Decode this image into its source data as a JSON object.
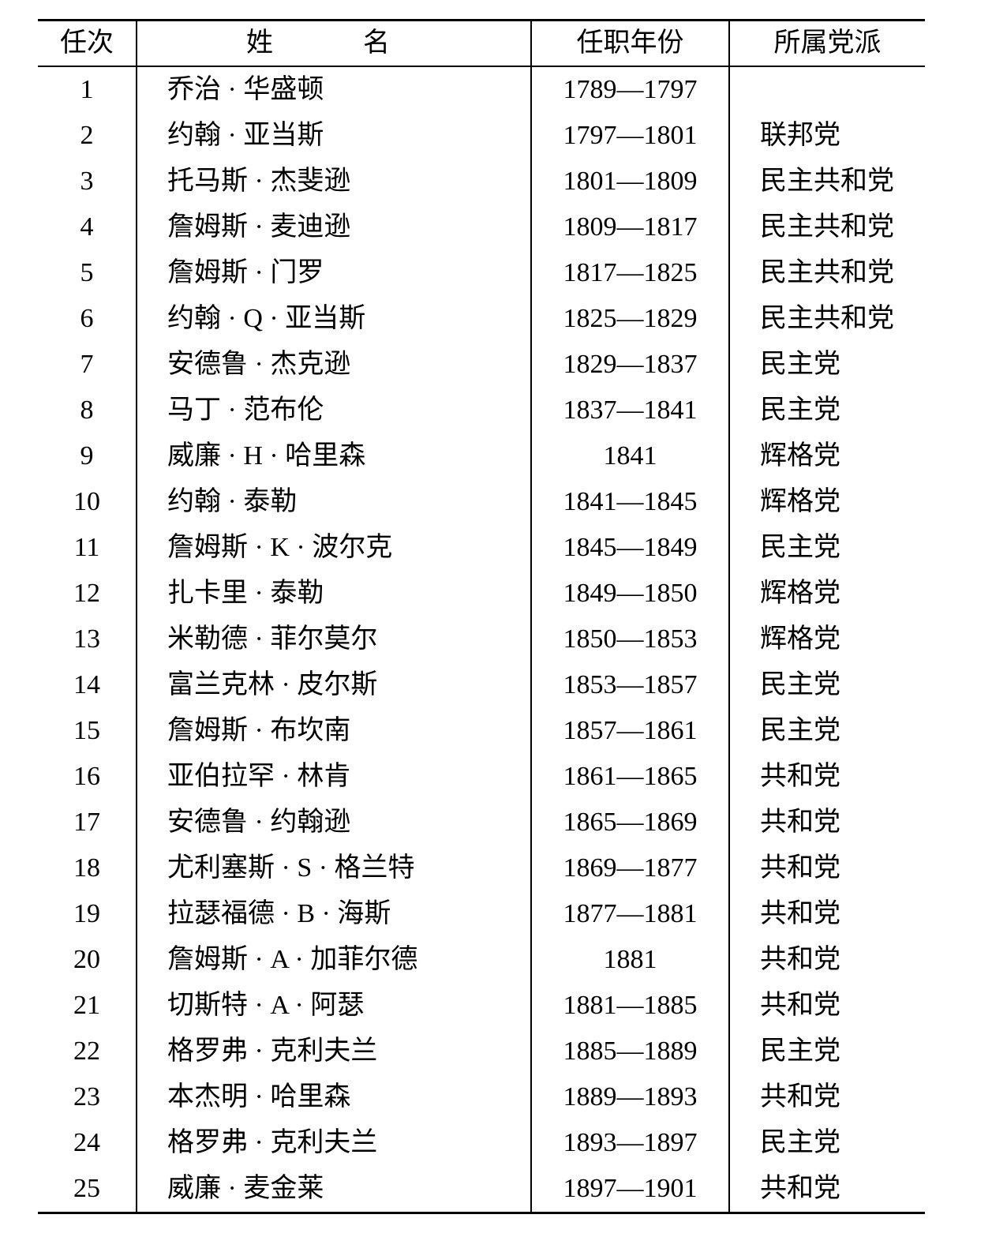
{
  "table": {
    "headers": [
      "任次",
      "姓　名",
      "任职年份",
      "所属党派"
    ],
    "rows": [
      [
        "1",
        "乔治 · 华盛顿",
        "1789—1797",
        ""
      ],
      [
        "2",
        "约翰 · 亚当斯",
        "1797—1801",
        "联邦党"
      ],
      [
        "3",
        "托马斯 · 杰斐逊",
        "1801—1809",
        "民主共和党"
      ],
      [
        "4",
        "詹姆斯 · 麦迪逊",
        "1809—1817",
        "民主共和党"
      ],
      [
        "5",
        "詹姆斯 · 门罗",
        "1817—1825",
        "民主共和党"
      ],
      [
        "6",
        "约翰 · Q · 亚当斯",
        "1825—1829",
        "民主共和党"
      ],
      [
        "7",
        "安德鲁 · 杰克逊",
        "1829—1837",
        "民主党"
      ],
      [
        "8",
        "马丁 · 范布伦",
        "1837—1841",
        "民主党"
      ],
      [
        "9",
        "威廉 · H · 哈里森",
        "1841",
        "辉格党"
      ],
      [
        "10",
        "约翰 · 泰勒",
        "1841—1845",
        "辉格党"
      ],
      [
        "11",
        "詹姆斯 · K · 波尔克",
        "1845—1849",
        "民主党"
      ],
      [
        "12",
        "扎卡里 · 泰勒",
        "1849—1850",
        "辉格党"
      ],
      [
        "13",
        "米勒德 · 菲尔莫尔",
        "1850—1853",
        "辉格党"
      ],
      [
        "14",
        "富兰克林 · 皮尔斯",
        "1853—1857",
        "民主党"
      ],
      [
        "15",
        "詹姆斯 · 布坎南",
        "1857—1861",
        "民主党"
      ],
      [
        "16",
        "亚伯拉罕 · 林肯",
        "1861—1865",
        "共和党"
      ],
      [
        "17",
        "安德鲁 · 约翰逊",
        "1865—1869",
        "共和党"
      ],
      [
        "18",
        "尤利塞斯 · S · 格兰特",
        "1869—1877",
        "共和党"
      ],
      [
        "19",
        "拉瑟福德 · B · 海斯",
        "1877—1881",
        "共和党"
      ],
      [
        "20",
        "詹姆斯 · A · 加菲尔德",
        "1881",
        "共和党"
      ],
      [
        "21",
        "切斯特 · A · 阿瑟",
        "1881—1885",
        "共和党"
      ],
      [
        "22",
        "格罗弗 · 克利夫兰",
        "1885—1889",
        "民主党"
      ],
      [
        "23",
        "本杰明 · 哈里森",
        "1889—1893",
        "共和党"
      ],
      [
        "24",
        "格罗弗 · 克利夫兰",
        "1893—1897",
        "民主党"
      ],
      [
        "25",
        "威廉 · 麦金莱",
        "1897—1901",
        "共和党"
      ]
    ]
  }
}
